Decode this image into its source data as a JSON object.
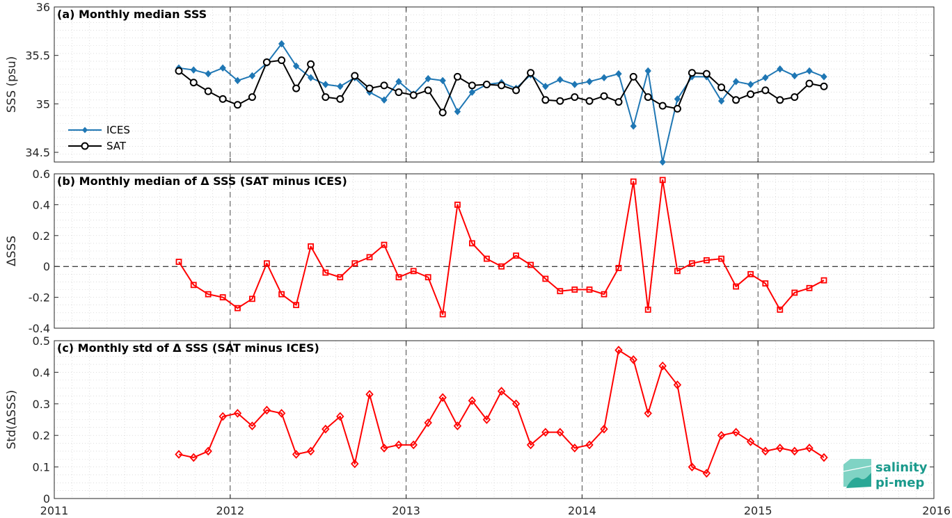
{
  "colors": {
    "ices": "#1f77b4",
    "sat": "#000000",
    "delta": "#ff0000",
    "grid": "#c8c8c8",
    "logo": "#1a9a8c"
  },
  "logo": {
    "line1": "salinity",
    "line2": "pi-mep"
  },
  "x_ticks": [
    "2011",
    "2012",
    "2013",
    "2014",
    "2015",
    "2016"
  ],
  "chart_data": [
    {
      "type": "line",
      "title": "(a) Monthly median SSS",
      "ylabel": "SSS (psu)",
      "xlim": [
        2011,
        2016
      ],
      "ylim": [
        34.4,
        36
      ],
      "y_ticks": [
        "34.5",
        "35",
        "35.5",
        "36"
      ],
      "grid": "on",
      "legend_placement": "bottom-left",
      "x": [
        2011.708,
        2011.792,
        2011.875,
        2011.958,
        2012.042,
        2012.125,
        2012.208,
        2012.292,
        2012.375,
        2012.458,
        2012.542,
        2012.625,
        2012.708,
        2012.792,
        2012.875,
        2012.958,
        2013.042,
        2013.125,
        2013.208,
        2013.292,
        2013.375,
        2013.458,
        2013.542,
        2013.625,
        2013.708,
        2013.792,
        2013.875,
        2013.958,
        2014.042,
        2014.125,
        2014.208,
        2014.292,
        2014.375,
        2014.458,
        2014.542,
        2014.625,
        2014.708,
        2014.792,
        2014.875,
        2014.958,
        2015.042,
        2015.125,
        2015.208,
        2015.292,
        2015.375
      ],
      "series": [
        {
          "name": "ICES",
          "values": [
            35.37,
            35.35,
            35.31,
            35.37,
            35.24,
            35.29,
            35.42,
            35.62,
            35.39,
            35.27,
            35.2,
            35.18,
            35.27,
            35.12,
            35.04,
            35.23,
            35.1,
            35.26,
            35.24,
            34.92,
            35.12,
            35.2,
            35.22,
            35.16,
            35.3,
            35.18,
            35.25,
            35.2,
            35.23,
            35.27,
            35.31,
            34.77,
            35.34,
            34.4,
            35.05,
            35.28,
            35.28,
            35.03,
            35.23,
            35.2,
            35.27,
            35.36,
            35.29,
            35.34,
            35.28
          ]
        },
        {
          "name": "SAT",
          "values": [
            35.34,
            35.22,
            35.13,
            35.05,
            34.99,
            35.07,
            35.43,
            35.45,
            35.16,
            35.41,
            35.07,
            35.05,
            35.29,
            35.16,
            35.19,
            35.12,
            35.09,
            35.14,
            34.91,
            35.28,
            35.19,
            35.2,
            35.19,
            35.14,
            35.32,
            35.04,
            35.03,
            35.07,
            35.03,
            35.08,
            35.02,
            35.28,
            35.07,
            34.98,
            34.95,
            35.32,
            35.31,
            35.17,
            35.04,
            35.1,
            35.14,
            35.04,
            35.07,
            35.21,
            35.18
          ]
        }
      ]
    },
    {
      "type": "line",
      "title": "(b) Monthly median of Δ SSS (SAT minus ICES)",
      "ylabel": "ΔSSS",
      "xlim": [
        2011,
        2016
      ],
      "ylim": [
        -0.4,
        0.6
      ],
      "y_ticks": [
        "-0.4",
        "-0.2",
        "0",
        "0.2",
        "0.4",
        "0.6"
      ],
      "grid": "on",
      "x": [
        2011.708,
        2011.792,
        2011.875,
        2011.958,
        2012.042,
        2012.125,
        2012.208,
        2012.292,
        2012.375,
        2012.458,
        2012.542,
        2012.625,
        2012.708,
        2012.792,
        2012.875,
        2012.958,
        2013.042,
        2013.125,
        2013.208,
        2013.292,
        2013.375,
        2013.458,
        2013.542,
        2013.625,
        2013.708,
        2013.792,
        2013.875,
        2013.958,
        2014.042,
        2014.125,
        2014.208,
        2014.292,
        2014.375,
        2014.458,
        2014.542,
        2014.625,
        2014.708,
        2014.792,
        2014.875,
        2014.958,
        2015.042,
        2015.125,
        2015.208,
        2015.292,
        2015.375
      ],
      "series": [
        {
          "values": [
            0.03,
            -0.12,
            -0.18,
            -0.2,
            -0.27,
            -0.21,
            0.02,
            -0.18,
            -0.25,
            0.13,
            -0.04,
            -0.07,
            0.02,
            0.06,
            0.14,
            -0.07,
            -0.03,
            -0.07,
            -0.31,
            0.4,
            0.15,
            0.05,
            0.0,
            0.07,
            0.01,
            -0.08,
            -0.16,
            -0.15,
            -0.15,
            -0.18,
            -0.01,
            0.55,
            -0.28,
            0.56,
            -0.03,
            0.02,
            0.04,
            0.05,
            -0.13,
            -0.05,
            -0.11,
            -0.28,
            -0.17,
            -0.14,
            -0.09
          ]
        }
      ]
    },
    {
      "type": "line",
      "title": "(c) Monthly std of Δ SSS (SAT minus ICES)",
      "ylabel": "Std(ΔSSS)",
      "xlim": [
        2011,
        2016
      ],
      "ylim": [
        0,
        0.5
      ],
      "y_ticks": [
        "0",
        "0.1",
        "0.2",
        "0.3",
        "0.4",
        "0.5"
      ],
      "grid": "on",
      "x": [
        2011.708,
        2011.792,
        2011.875,
        2011.958,
        2012.042,
        2012.125,
        2012.208,
        2012.292,
        2012.375,
        2012.458,
        2012.542,
        2012.625,
        2012.708,
        2012.792,
        2012.875,
        2012.958,
        2013.042,
        2013.125,
        2013.208,
        2013.292,
        2013.375,
        2013.458,
        2013.542,
        2013.625,
        2013.708,
        2013.792,
        2013.875,
        2013.958,
        2014.042,
        2014.125,
        2014.208,
        2014.292,
        2014.375,
        2014.458,
        2014.542,
        2014.625,
        2014.708,
        2014.792,
        2014.875,
        2014.958,
        2015.042,
        2015.125,
        2015.208,
        2015.292,
        2015.375
      ],
      "series": [
        {
          "values": [
            0.14,
            0.13,
            0.15,
            0.26,
            0.27,
            0.23,
            0.28,
            0.27,
            0.14,
            0.15,
            0.22,
            0.26,
            0.11,
            0.33,
            0.16,
            0.17,
            0.17,
            0.24,
            0.32,
            0.23,
            0.31,
            0.25,
            0.34,
            0.3,
            0.17,
            0.21,
            0.21,
            0.16,
            0.17,
            0.22,
            0.47,
            0.44,
            0.27,
            0.42,
            0.36,
            0.1,
            0.08,
            0.2,
            0.21,
            0.18,
            0.15,
            0.16,
            0.15,
            0.16,
            0.13
          ]
        }
      ]
    }
  ]
}
